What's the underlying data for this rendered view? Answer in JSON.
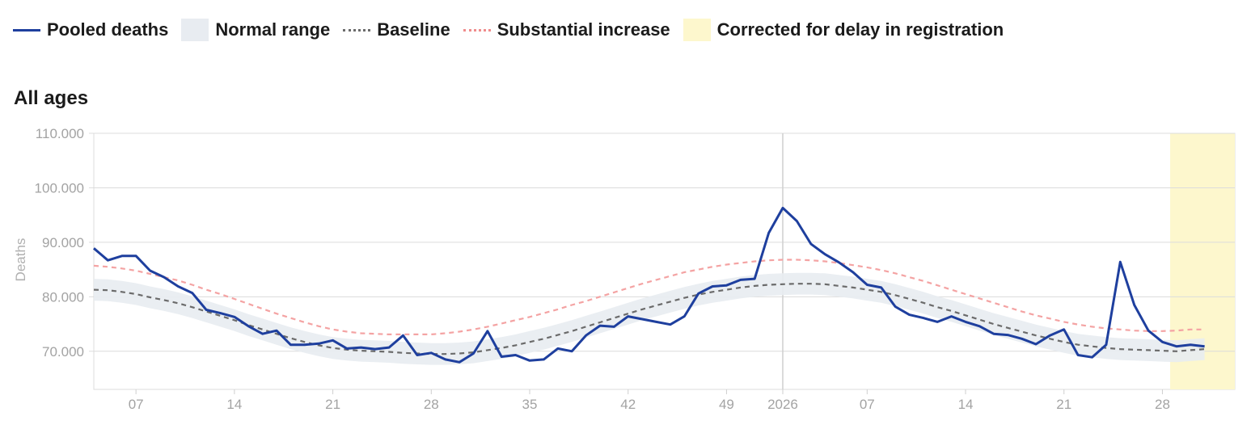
{
  "legend": {
    "items": [
      {
        "label": "Pooled deaths",
        "swatch": "line",
        "color": "#1e3f9e"
      },
      {
        "label": "Normal range",
        "swatch": "band",
        "color": "#e8ecf1"
      },
      {
        "label": "Baseline",
        "swatch": "dash-gray",
        "color": "#6b6b6b"
      },
      {
        "label": "Substantial increase",
        "swatch": "dash-red",
        "color": "#f08c8c"
      },
      {
        "label": "Corrected for delay in registration",
        "swatch": "yellow",
        "color": "#fdf7cd"
      }
    ]
  },
  "chart_data": {
    "type": "line",
    "title": "All ages",
    "ylabel": "Deaths",
    "xlabel": "",
    "ylim": [
      63000,
      110000
    ],
    "y_ticks": [
      {
        "value": 70000,
        "label": "70.000"
      },
      {
        "value": 80000,
        "label": "80.000"
      },
      {
        "value": 90000,
        "label": "90.000"
      },
      {
        "value": 100000,
        "label": "100.000"
      },
      {
        "value": 110000,
        "label": "110.000"
      }
    ],
    "x_range": [
      "2025-W04",
      "2026-W33"
    ],
    "x_ticks": [
      {
        "label": "07",
        "week": "2025-W07"
      },
      {
        "label": "14",
        "week": "2025-W14"
      },
      {
        "label": "21",
        "week": "2025-W21"
      },
      {
        "label": "28",
        "week": "2025-W28"
      },
      {
        "label": "35",
        "week": "2025-W35"
      },
      {
        "label": "42",
        "week": "2025-W42"
      },
      {
        "label": "49",
        "week": "2025-W49"
      },
      {
        "label": "2026",
        "week": "2026-W01",
        "year_divider": true
      },
      {
        "label": "07",
        "week": "2026-W07"
      },
      {
        "label": "14",
        "week": "2026-W14"
      },
      {
        "label": "21",
        "week": "2026-W21"
      },
      {
        "label": "28",
        "week": "2026-W28"
      }
    ],
    "grid": true,
    "corrected_from": "2026-W29",
    "colors": {
      "pooled": "#1e3f9e",
      "band": "#e8ecf1",
      "baseline": "#6b6b6b",
      "substantial": "#f4a3a3",
      "corrected": "#fdf7cd",
      "grid": "#dcdcdc"
    },
    "series": [
      {
        "name": "Pooled deaths",
        "start_week": "2025-W04",
        "values": [
          88900,
          86700,
          87500,
          87500,
          84800,
          83600,
          81900,
          80700,
          77600,
          77000,
          76300,
          74600,
          73200,
          73800,
          71200,
          71200,
          71400,
          72000,
          70500,
          70700,
          70400,
          70700,
          72900,
          69300,
          69700,
          68500,
          68000,
          69600,
          73700,
          69000,
          69300,
          68300,
          68500,
          70500,
          70000,
          72900,
          74700,
          74500,
          76400,
          75900,
          75400,
          74900,
          76400,
          80600,
          81900,
          82100,
          83100,
          83300,
          91700,
          96300,
          93900,
          89700,
          87800,
          86300,
          84500,
          82200,
          81700,
          78200,
          76700,
          76100,
          75400,
          76400,
          75400,
          74600,
          73200,
          73000,
          72300,
          71300,
          72900,
          74000,
          69300,
          68900,
          71200,
          86400,
          78500,
          73800,
          71700,
          70900,
          71200,
          70900
        ]
      },
      {
        "name": "Baseline",
        "start_week": "2025-W04",
        "values": [
          81300,
          81200,
          80900,
          80500,
          79900,
          79400,
          78800,
          78100,
          77300,
          76500,
          75700,
          74800,
          74000,
          73200,
          72400,
          71700,
          71100,
          70600,
          70300,
          70100,
          70000,
          69900,
          69700,
          69600,
          69500,
          69500,
          69600,
          69800,
          70200,
          70600,
          71100,
          71700,
          72300,
          73000,
          73700,
          74500,
          75300,
          76100,
          76900,
          77700,
          78400,
          79100,
          79800,
          80400,
          80900,
          81300,
          81700,
          82000,
          82200,
          82300,
          82400,
          82400,
          82300,
          82000,
          81700,
          81300,
          80900,
          80300,
          79600,
          78900,
          78100,
          77400,
          76600,
          75800,
          75000,
          74300,
          73600,
          72900,
          72300,
          71700,
          71200,
          70900,
          70600,
          70400,
          70300,
          70200,
          70100,
          70000,
          70200,
          70400
        ]
      },
      {
        "name": "Substantial increase",
        "start_week": "2025-W04",
        "values": [
          85700,
          85500,
          85200,
          84800,
          84200,
          83600,
          83000,
          82200,
          81300,
          80500,
          79600,
          78700,
          77800,
          76900,
          76100,
          75300,
          74600,
          74000,
          73600,
          73300,
          73200,
          73100,
          73100,
          73100,
          73100,
          73300,
          73600,
          74000,
          74500,
          75100,
          75700,
          76300,
          77000,
          77700,
          78500,
          79200,
          80000,
          80800,
          81600,
          82400,
          83100,
          83800,
          84500,
          85000,
          85500,
          85900,
          86200,
          86500,
          86700,
          86800,
          86800,
          86700,
          86500,
          86200,
          85800,
          85400,
          84900,
          84300,
          83600,
          82900,
          82100,
          81300,
          80500,
          79700,
          78900,
          78100,
          77300,
          76600,
          76000,
          75400,
          74900,
          74500,
          74200,
          74000,
          73800,
          73700,
          73700,
          73800,
          74000,
          74000
        ]
      },
      {
        "name": "Normal range",
        "start_week": "2025-W04",
        "lower": [
          79300,
          79200,
          78900,
          78500,
          77900,
          77400,
          76800,
          76100,
          75300,
          74500,
          73700,
          72800,
          72000,
          71200,
          70400,
          69700,
          69100,
          68600,
          68300,
          68100,
          68000,
          67900,
          67700,
          67600,
          67500,
          67500,
          67600,
          67800,
          68200,
          68600,
          69100,
          69700,
          70300,
          71000,
          71700,
          72500,
          73300,
          74100,
          74900,
          75700,
          76400,
          77100,
          77800,
          78400,
          78900,
          79300,
          79700,
          80000,
          80200,
          80300,
          80400,
          80400,
          80300,
          80000,
          79700,
          79300,
          78900,
          78300,
          77600,
          76900,
          76100,
          75400,
          74600,
          73800,
          73000,
          72300,
          71600,
          70900,
          70300,
          69700,
          69200,
          68900,
          68600,
          68400,
          68300,
          68200,
          68100,
          68000,
          68200,
          68400
        ],
        "upper": [
          83300,
          83200,
          82900,
          82500,
          81900,
          81400,
          80800,
          80100,
          79300,
          78500,
          77700,
          76800,
          76000,
          75200,
          74400,
          73700,
          73100,
          72600,
          72300,
          72100,
          72000,
          71900,
          71700,
          71600,
          71500,
          71500,
          71600,
          71800,
          72200,
          72600,
          73100,
          73700,
          74300,
          75000,
          75700,
          76500,
          77300,
          78100,
          78900,
          79700,
          80400,
          81100,
          81800,
          82400,
          82900,
          83300,
          83700,
          84000,
          84200,
          84300,
          84400,
          84400,
          84300,
          84000,
          83700,
          83300,
          82900,
          82300,
          81600,
          80900,
          80100,
          79400,
          78600,
          77800,
          77000,
          76300,
          75600,
          74900,
          74300,
          73700,
          73200,
          72900,
          72600,
          72400,
          72300,
          72200,
          72100,
          72000,
          72200,
          72400
        ]
      }
    ]
  }
}
